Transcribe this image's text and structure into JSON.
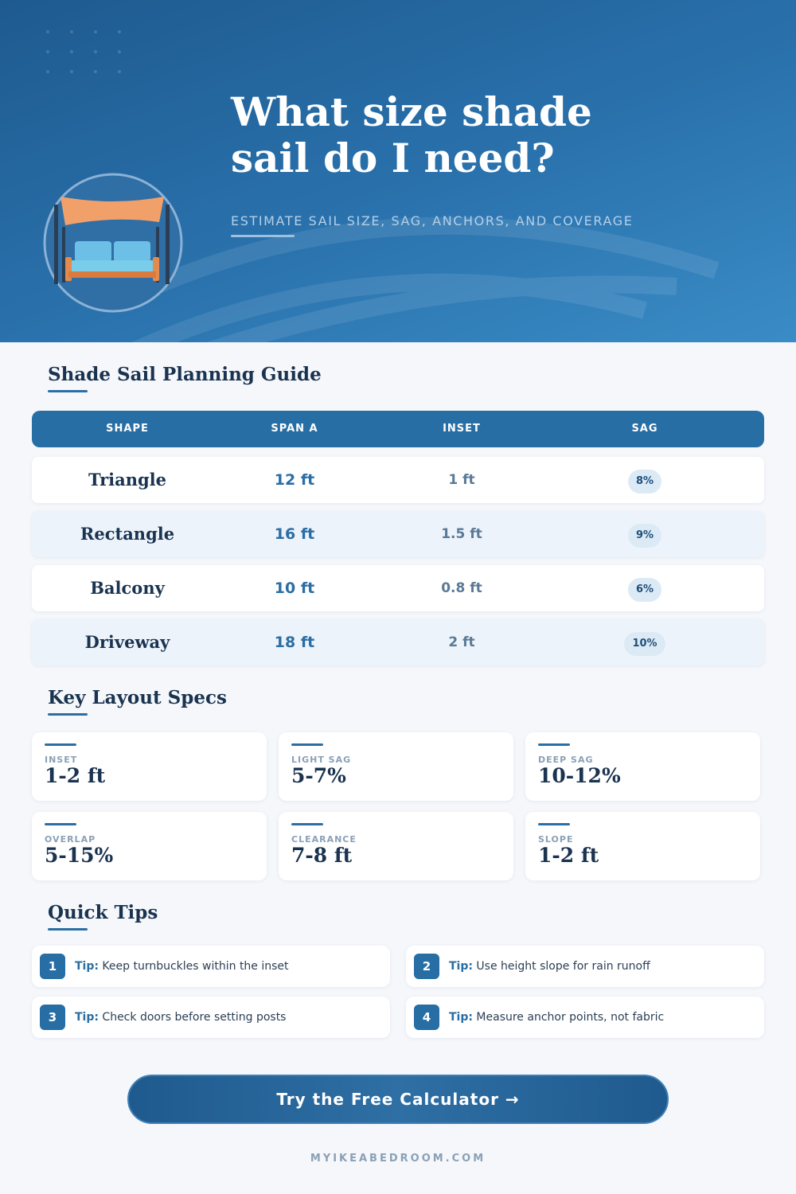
{
  "header": {
    "title": "What size shade sail do I need?",
    "subtitle": "ESTIMATE SAIL SIZE, SAG, ANCHORS, AND COVERAGE"
  },
  "guide": {
    "title": "Shade Sail Planning Guide",
    "columns": [
      "SHAPE",
      "SPAN A",
      "INSET",
      "SAG"
    ],
    "rows": [
      [
        "Triangle",
        "12 ft",
        "1 ft",
        "8%"
      ],
      [
        "Rectangle",
        "16 ft",
        "1.5 ft",
        "9%"
      ],
      [
        "Balcony",
        "10 ft",
        "0.8 ft",
        "6%"
      ],
      [
        "Driveway",
        "18 ft",
        "2 ft",
        "10%"
      ]
    ]
  },
  "specs": {
    "title": "Key Layout Specs",
    "items": [
      {
        "label": "INSET",
        "value": "1-2 ft"
      },
      {
        "label": "LIGHT SAG",
        "value": "5-7%"
      },
      {
        "label": "DEEP SAG",
        "value": "10-12%"
      },
      {
        "label": "OVERLAP",
        "value": "5-15%"
      },
      {
        "label": "CLEARANCE",
        "value": "7-8 ft"
      },
      {
        "label": "SLOPE",
        "value": "1-2 ft"
      }
    ]
  },
  "tips": {
    "title": "Quick Tips",
    "items": [
      {
        "number": "1",
        "prefix": "Tip:",
        "text": "Keep turnbuckles within the inset"
      },
      {
        "number": "2",
        "prefix": "Tip:",
        "text": "Use height slope for rain runoff"
      },
      {
        "number": "3",
        "prefix": "Tip:",
        "text": "Check doors before setting posts"
      },
      {
        "number": "4",
        "prefix": "Tip:",
        "text": "Measure anchor points, not fabric"
      }
    ]
  },
  "cta": {
    "label": "Try the Free Calculator →"
  },
  "footer": {
    "site": "MYIKEABEDROOM.COM"
  }
}
